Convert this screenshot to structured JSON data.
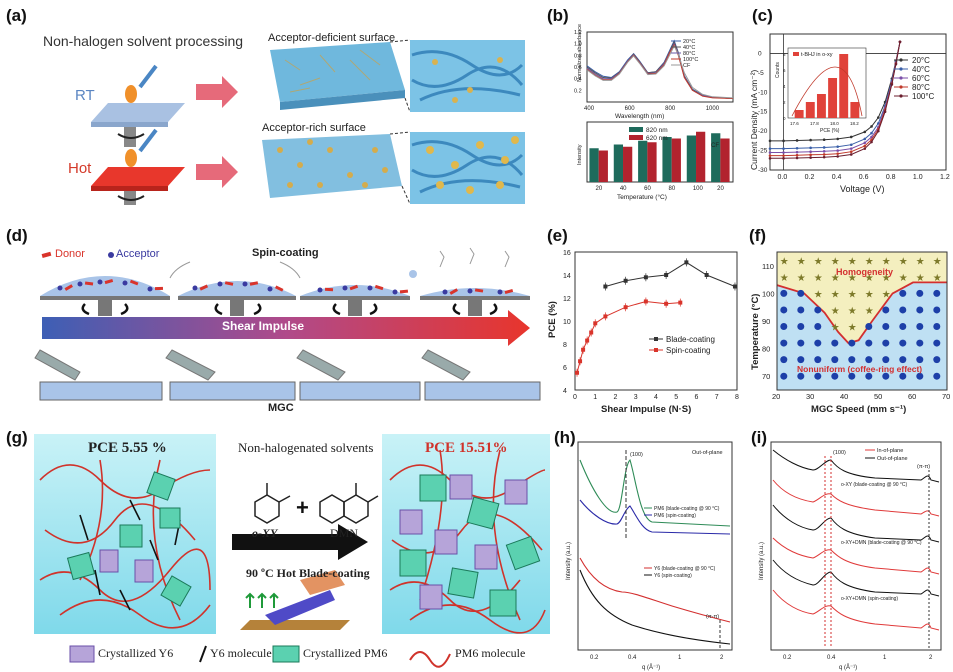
{
  "labels": {
    "a": "(a)",
    "b": "(b)",
    "c": "(c)",
    "d": "(d)",
    "e": "(e)",
    "f": "(f)",
    "g": "(g)",
    "h": "(h)",
    "i": "(i)"
  },
  "panel_a": {
    "title": "Non-halogen solvent processing",
    "rt": "RT",
    "hot": "Hot",
    "top_caption": "Acceptor-deficient surface",
    "bottom_caption": "Acceptor-rich surface"
  },
  "panel_d": {
    "legend_donor": "Donor",
    "legend_acceptor": "Acceptor",
    "spin": "Spin-coating",
    "shear": "Shear Impulse",
    "mgc": "MGC"
  },
  "panel_f": {
    "homogeneity": "Homogeneity",
    "nonuniform": "Nonuniform (coffee-ring effect)"
  },
  "panel_g": {
    "pce_left": "PCE  5.55 %",
    "pce_right": "PCE 15.51%",
    "solvents_title": "Non-halogenated solvents",
    "oxy": "o-XY",
    "dmn": "DMN",
    "hot_blade": "90 ºC Hot Blade-coating",
    "legend": [
      "Crystallized Y6",
      "Y6 molecule",
      "Crystallized PM6",
      "PM6 molecule"
    ]
  },
  "chart_data": [
    {
      "id": "b-top",
      "type": "line",
      "xlabel": "Wavelength (nm)",
      "ylabel": "Normalized absorbance",
      "xlim": [
        380,
        1100
      ],
      "ylim": [
        0,
        1.2
      ],
      "xticks": [
        400,
        600,
        800,
        1000
      ],
      "yticks": [
        0.2,
        0.4,
        0.6,
        0.8,
        1.0,
        1.2
      ],
      "legend_position": "right",
      "x": [
        380,
        420,
        460,
        500,
        540,
        580,
        610,
        640,
        680,
        720,
        760,
        790,
        810,
        830,
        860,
        900,
        950,
        1000,
        1100
      ],
      "series": [
        {
          "name": "20°C",
          "color": "#3a5fa8",
          "values": [
            0.62,
            0.52,
            0.44,
            0.42,
            0.52,
            0.72,
            0.83,
            0.7,
            0.5,
            0.52,
            0.68,
            0.9,
            1.05,
            0.85,
            0.45,
            0.22,
            0.12,
            0.08,
            0.06
          ]
        },
        {
          "name": "40°C",
          "color": "#555555",
          "values": [
            0.6,
            0.5,
            0.42,
            0.41,
            0.51,
            0.7,
            0.82,
            0.69,
            0.5,
            0.52,
            0.67,
            0.88,
            1.03,
            0.84,
            0.44,
            0.21,
            0.11,
            0.08,
            0.06
          ]
        },
        {
          "name": "80°C",
          "color": "#6a5aa8",
          "values": [
            0.58,
            0.48,
            0.4,
            0.4,
            0.5,
            0.7,
            0.81,
            0.68,
            0.49,
            0.5,
            0.66,
            0.87,
            1.0,
            0.82,
            0.43,
            0.2,
            0.11,
            0.08,
            0.06
          ]
        },
        {
          "name": "100°C",
          "color": "#c0392b",
          "values": [
            0.56,
            0.46,
            0.38,
            0.38,
            0.49,
            0.69,
            0.8,
            0.67,
            0.48,
            0.49,
            0.64,
            0.86,
            0.98,
            0.8,
            0.42,
            0.2,
            0.1,
            0.07,
            0.06
          ]
        },
        {
          "name": "CF",
          "color": "#999999",
          "values": [
            0.55,
            0.45,
            0.37,
            0.37,
            0.48,
            0.68,
            0.79,
            0.66,
            0.47,
            0.48,
            0.62,
            0.82,
            0.96,
            0.82,
            0.5,
            0.25,
            0.13,
            0.09,
            0.07
          ]
        }
      ]
    },
    {
      "id": "b-bottom",
      "type": "bar",
      "xlabel": "Temperature (°C)",
      "ylabel": "Intensity",
      "categories": [
        "20",
        "40",
        "60",
        "80",
        "100",
        "20"
      ],
      "annotation": "CF",
      "legend_position": "top-left",
      "series": [
        {
          "name": "820 nm",
          "color": "#1e6b5c",
          "values": [
            0.45,
            0.5,
            0.55,
            0.6,
            0.62,
            0.65
          ]
        },
        {
          "name": "620 nm",
          "color": "#b2232e",
          "values": [
            0.42,
            0.47,
            0.53,
            0.58,
            0.67,
            0.58
          ]
        }
      ]
    },
    {
      "id": "c",
      "type": "line",
      "xlabel": "Voltage (V)",
      "ylabel": "Current Density (mA cm⁻²)",
      "xlim": [
        -0.1,
        1.2
      ],
      "ylim": [
        -30,
        5
      ],
      "xticks": [
        0.0,
        0.2,
        0.4,
        0.6,
        0.8,
        1.0,
        1.2
      ],
      "yticks": [
        0,
        -5,
        -10,
        -15,
        -20,
        -25,
        -30
      ],
      "legend_position": "right",
      "x": [
        -0.1,
        0.0,
        0.1,
        0.2,
        0.3,
        0.4,
        0.5,
        0.6,
        0.65,
        0.7,
        0.75,
        0.8,
        0.83,
        0.86
      ],
      "series": [
        {
          "name": "20°C",
          "color": "#333333",
          "values": [
            -22.5,
            -22.5,
            -22.4,
            -22.3,
            -22.2,
            -22.0,
            -21.5,
            -20.2,
            -18.8,
            -16.5,
            -12.5,
            -6.5,
            -2.0,
            3.0
          ]
        },
        {
          "name": "40°C",
          "color": "#3a5fa8",
          "values": [
            -24.5,
            -24.5,
            -24.4,
            -24.3,
            -24.2,
            -24.0,
            -23.5,
            -22.0,
            -20.5,
            -18.0,
            -13.5,
            -7.0,
            -2.2,
            3.0
          ]
        },
        {
          "name": "60°C",
          "color": "#7b4fa8",
          "values": [
            -25.5,
            -25.5,
            -25.4,
            -25.3,
            -25.2,
            -25.0,
            -24.5,
            -23.0,
            -21.5,
            -19.0,
            -14.0,
            -7.5,
            -2.5,
            3.0
          ]
        },
        {
          "name": "80°C",
          "color": "#c0392b",
          "values": [
            -26.3,
            -26.3,
            -26.2,
            -26.1,
            -26.0,
            -25.8,
            -25.3,
            -23.8,
            -22.2,
            -19.5,
            -14.5,
            -7.8,
            -2.6,
            3.0
          ]
        },
        {
          "name": "100°C",
          "color": "#6b1e2e",
          "values": [
            -27.0,
            -27.0,
            -26.9,
            -26.8,
            -26.7,
            -26.5,
            -26.0,
            -24.5,
            -22.8,
            -20.0,
            -15.0,
            -8.0,
            -2.8,
            3.0
          ]
        }
      ],
      "inset": {
        "type": "bar",
        "legend": "t-BHJ in o-xy",
        "xlabel": "PCE (%)",
        "ylabel": "Counts",
        "categories": [
          "17.7",
          "17.8",
          "17.9",
          "18.0",
          "18.1",
          "18.2"
        ],
        "xticks": [
          "17.6",
          "17.8",
          "18.0",
          "18.2"
        ],
        "values": [
          1,
          2,
          3,
          5,
          8,
          2
        ],
        "ylim": [
          0,
          8
        ],
        "yticks": [
          0,
          2,
          4,
          6,
          8
        ]
      }
    },
    {
      "id": "e",
      "type": "line",
      "xlabel": "Shear Impulse (N·S)",
      "ylabel": "PCE (%)",
      "xlim": [
        0,
        8
      ],
      "ylim": [
        4,
        16
      ],
      "xticks": [
        0,
        1,
        2,
        3,
        4,
        5,
        6,
        7,
        8
      ],
      "yticks": [
        4,
        6,
        8,
        10,
        12,
        14,
        16
      ],
      "legend_position": "bottom-right",
      "series": [
        {
          "name": "Blade-coating",
          "color": "#333333",
          "x": [
            1.5,
            2.5,
            3.5,
            4.5,
            5.5,
            6.5,
            7.9
          ],
          "values": [
            13.0,
            13.5,
            13.8,
            14.0,
            15.1,
            14.0,
            13.0
          ]
        },
        {
          "name": "Spin-coating",
          "color": "#d9342b",
          "x": [
            0.1,
            0.25,
            0.4,
            0.6,
            0.8,
            1.0,
            1.5,
            2.5,
            3.5,
            4.5,
            5.2
          ],
          "values": [
            5.5,
            6.5,
            7.5,
            8.3,
            9.0,
            9.8,
            10.4,
            11.2,
            11.7,
            11.5,
            11.6
          ]
        }
      ]
    },
    {
      "id": "f",
      "type": "scatter",
      "xlabel": "MGC Speed (mm s⁻¹)",
      "ylabel": "Temperature (°C)",
      "xlim": [
        20,
        70
      ],
      "ylim": [
        65,
        115
      ],
      "xticks": [
        20,
        30,
        40,
        50,
        60,
        70
      ],
      "yticks": [
        70,
        80,
        90,
        100,
        110
      ],
      "boundary": {
        "x": [
          20,
          28,
          34,
          38,
          41,
          44,
          48,
          54,
          60,
          70
        ],
        "y": [
          103,
          100,
          93,
          86,
          82,
          83,
          90,
          100,
          104,
          104
        ]
      },
      "grid_x": [
        22,
        27,
        32,
        37,
        42,
        47,
        52,
        57,
        62,
        67
      ],
      "grid_y": [
        70,
        76,
        82,
        88,
        94,
        100,
        106,
        112
      ]
    },
    {
      "id": "h",
      "type": "line",
      "title": "Out-of-plane",
      "xlabel": "q (Å⁻¹)",
      "ylabel": "Intensity (a.u.)",
      "xticks": [
        "0.2",
        "0.4",
        "1",
        "2"
      ],
      "annotations": [
        "(100)",
        "(π-π)"
      ],
      "series": [
        {
          "name": "PM6 (blade-coating @ 90 °C)",
          "color": "#2e8b57"
        },
        {
          "name": "PM6 (spin-coating)",
          "color": "#2a2aa8"
        },
        {
          "name": "Y6 (blade-coating @ 90 °C)",
          "color": "#d32f2f"
        },
        {
          "name": "Y6 (spin-coating)",
          "color": "#111111"
        }
      ]
    },
    {
      "id": "i",
      "type": "line",
      "xlabel": "q (Å⁻¹)",
      "ylabel": "Intensity (a.u.)",
      "xticks": [
        "0.2",
        "0.4",
        "1",
        "2"
      ],
      "legend": [
        "In-of-plane",
        "Out-of-plane"
      ],
      "annotations": [
        "(100)",
        "(π-π)"
      ],
      "curve_labels": [
        "o-XY (blade-coating @ 90 °C)",
        "o-XY+DMN (blade-coating @ 90 °C)",
        "o-XY+DMN (spin-coating)"
      ],
      "series": [
        {
          "name": "In-of-plane",
          "color": "#e03a3a"
        },
        {
          "name": "Out-of-plane",
          "color": "#111111"
        }
      ]
    }
  ]
}
